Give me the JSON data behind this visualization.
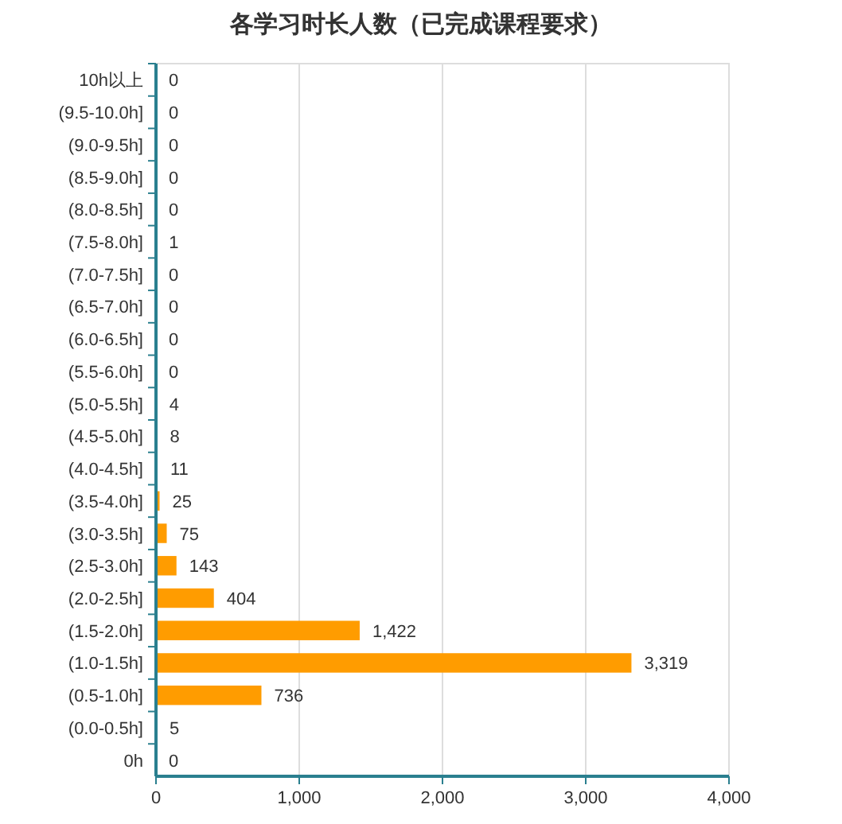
{
  "chart_data": {
    "type": "bar",
    "orientation": "horizontal",
    "title": "各学习时长人数（已完成课程要求）",
    "categories": [
      "10h以上",
      "(9.5-10.0h]",
      "(9.0-9.5h]",
      "(8.5-9.0h]",
      "(8.0-8.5h]",
      "(7.5-8.0h]",
      "(7.0-7.5h]",
      "(6.5-7.0h]",
      "(6.0-6.5h]",
      "(5.5-6.0h]",
      "(5.0-5.5h]",
      "(4.5-5.0h]",
      "(4.0-4.5h]",
      "(3.5-4.0h]",
      "(3.0-3.5h]",
      "(2.5-3.0h]",
      "(2.0-2.5h]",
      "(1.5-2.0h]",
      "(1.0-1.5h]",
      "(0.5-1.0h]",
      "(0.0-0.5h]",
      "0h"
    ],
    "values": [
      0,
      0,
      0,
      0,
      0,
      1,
      0,
      0,
      0,
      0,
      4,
      8,
      11,
      25,
      75,
      143,
      404,
      1422,
      3319,
      736,
      5,
      0
    ],
    "value_labels": [
      "0",
      "0",
      "0",
      "0",
      "0",
      "1",
      "0",
      "0",
      "0",
      "0",
      "4",
      "8",
      "11",
      "25",
      "75",
      "143",
      "404",
      "1,422",
      "3,319",
      "736",
      "5",
      "0"
    ],
    "color": "#ff9c00",
    "xlim": [
      0,
      4000
    ],
    "xticks": [
      0,
      {
        "value": 1000,
        "label": "1,000"
      },
      {
        "value": 2000,
        "label": "2,000"
      },
      {
        "value": 3000,
        "label": "3,000"
      },
      {
        "value": 4000,
        "label": "4,000"
      }
    ],
    "grid": "x"
  }
}
